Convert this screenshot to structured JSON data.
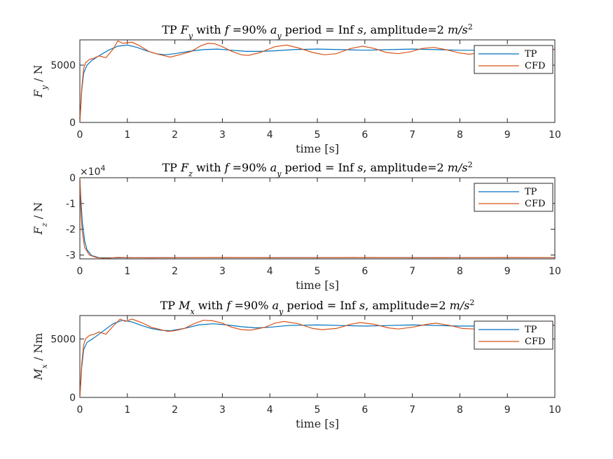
{
  "chart_data": [
    {
      "type": "line",
      "title_parts": [
        "TP ",
        "F",
        "y",
        " with ",
        "f",
        " =90% ",
        "a",
        "y",
        " period = Inf ",
        "s",
        ", amplitude=2 ",
        "m/s",
        "2"
      ],
      "xlabel": "time [s]",
      "ylabel_parts": [
        "F",
        "y",
        " / N"
      ],
      "xlim": [
        0,
        10
      ],
      "ylim": [
        0,
        7200
      ],
      "xticks": [
        0,
        1,
        2,
        3,
        4,
        5,
        6,
        7,
        8,
        9,
        10
      ],
      "yticks": [
        0,
        5000
      ],
      "ytick_labels": [
        "0",
        "5000"
      ],
      "legend": "top-right",
      "series": [
        {
          "name": "TP",
          "color": "#0072BD",
          "points": [
            [
              0,
              0
            ],
            [
              0.04,
              2800
            ],
            [
              0.08,
              4300
            ],
            [
              0.15,
              5000
            ],
            [
              0.25,
              5400
            ],
            [
              0.4,
              5800
            ],
            [
              0.6,
              6300
            ],
            [
              0.8,
              6650
            ],
            [
              1.0,
              6750
            ],
            [
              1.2,
              6550
            ],
            [
              1.4,
              6250
            ],
            [
              1.6,
              6000
            ],
            [
              1.8,
              5900
            ],
            [
              2.0,
              6000
            ],
            [
              2.3,
              6200
            ],
            [
              2.6,
              6350
            ],
            [
              2.9,
              6400
            ],
            [
              3.2,
              6300
            ],
            [
              3.5,
              6200
            ],
            [
              3.8,
              6200
            ],
            [
              4.1,
              6250
            ],
            [
              4.5,
              6350
            ],
            [
              5.0,
              6400
            ],
            [
              5.5,
              6350
            ],
            [
              6.0,
              6300
            ],
            [
              6.5,
              6350
            ],
            [
              7.0,
              6400
            ],
            [
              7.5,
              6350
            ],
            [
              8.0,
              6300
            ],
            [
              8.5,
              6300
            ],
            [
              9.0,
              6350
            ],
            [
              9.5,
              6350
            ],
            [
              10,
              6350
            ]
          ]
        },
        {
          "name": "CFD",
          "color": "#D95319",
          "points": [
            [
              0,
              0
            ],
            [
              0.04,
              3000
            ],
            [
              0.08,
              4700
            ],
            [
              0.12,
              5200
            ],
            [
              0.2,
              5500
            ],
            [
              0.3,
              5600
            ],
            [
              0.4,
              5800
            ],
            [
              0.55,
              5650
            ],
            [
              0.7,
              6400
            ],
            [
              0.8,
              7100
            ],
            [
              0.9,
              6900
            ],
            [
              1.0,
              6950
            ],
            [
              1.1,
              7000
            ],
            [
              1.25,
              6700
            ],
            [
              1.45,
              6200
            ],
            [
              1.6,
              6000
            ],
            [
              1.8,
              5800
            ],
            [
              1.9,
              5700
            ],
            [
              2.1,
              5900
            ],
            [
              2.35,
              6200
            ],
            [
              2.55,
              6700
            ],
            [
              2.7,
              6900
            ],
            [
              2.85,
              6850
            ],
            [
              3.0,
              6600
            ],
            [
              3.2,
              6200
            ],
            [
              3.4,
              5900
            ],
            [
              3.55,
              5850
            ],
            [
              3.8,
              6100
            ],
            [
              4.1,
              6600
            ],
            [
              4.35,
              6750
            ],
            [
              4.6,
              6500
            ],
            [
              4.9,
              6100
            ],
            [
              5.15,
              5900
            ],
            [
              5.4,
              6000
            ],
            [
              5.7,
              6450
            ],
            [
              5.95,
              6650
            ],
            [
              6.2,
              6450
            ],
            [
              6.45,
              6100
            ],
            [
              6.7,
              6000
            ],
            [
              6.95,
              6150
            ],
            [
              7.2,
              6450
            ],
            [
              7.45,
              6550
            ],
            [
              7.7,
              6350
            ],
            [
              8.0,
              6050
            ],
            [
              8.2,
              5950
            ],
            [
              8.45,
              6100
            ],
            [
              8.8,
              6450
            ],
            [
              9.05,
              6550
            ],
            [
              9.3,
              6350
            ],
            [
              9.55,
              6100
            ],
            [
              9.8,
              6200
            ],
            [
              10,
              6400
            ]
          ]
        }
      ]
    },
    {
      "type": "line",
      "title_parts": [
        "TP ",
        "F",
        "z",
        " with ",
        "f",
        " =90% ",
        "a",
        "y",
        " period = Inf ",
        "s",
        ", amplitude=2 ",
        "m/s",
        "2"
      ],
      "xlabel": "time [s]",
      "ylabel_parts": [
        "F",
        "z",
        " / N"
      ],
      "xlim": [
        0,
        10
      ],
      "ylim": [
        -31500,
        0
      ],
      "xticks": [
        0,
        1,
        2,
        3,
        4,
        5,
        6,
        7,
        8,
        9,
        10
      ],
      "yticks": [
        0,
        -10000,
        -20000,
        -30000
      ],
      "ytick_labels": [
        "0",
        "-1",
        "-2",
        "-3"
      ],
      "multiplier_base": "×10",
      "multiplier_exp": "4",
      "legend": "top-right",
      "series": [
        {
          "name": "TP",
          "color": "#0072BD",
          "points": [
            [
              0,
              0
            ],
            [
              0.02,
              -8000
            ],
            [
              0.05,
              -17000
            ],
            [
              0.1,
              -24500
            ],
            [
              0.15,
              -28000
            ],
            [
              0.25,
              -30200
            ],
            [
              0.4,
              -31000
            ],
            [
              0.6,
              -31100
            ],
            [
              1.0,
              -31050
            ],
            [
              2,
              -31000
            ],
            [
              3,
              -31000
            ],
            [
              4,
              -31000
            ],
            [
              5,
              -31000
            ],
            [
              6,
              -31000
            ],
            [
              7,
              -31000
            ],
            [
              8,
              -31000
            ],
            [
              9,
              -31000
            ],
            [
              10,
              -31000
            ]
          ]
        },
        {
          "name": "CFD",
          "color": "#D95319",
          "points": [
            [
              0,
              0
            ],
            [
              0.02,
              -12000
            ],
            [
              0.05,
              -21000
            ],
            [
              0.1,
              -27000
            ],
            [
              0.2,
              -30000
            ],
            [
              0.35,
              -31000
            ],
            [
              0.55,
              -31300
            ],
            [
              0.8,
              -30900
            ],
            [
              1.1,
              -31050
            ],
            [
              1.5,
              -31100
            ],
            [
              2,
              -31000
            ],
            [
              3,
              -30950
            ],
            [
              4,
              -31050
            ],
            [
              5,
              -31000
            ],
            [
              6,
              -30950
            ],
            [
              7,
              -31050
            ],
            [
              8,
              -31000
            ],
            [
              9,
              -30950
            ],
            [
              10,
              -31000
            ]
          ]
        }
      ]
    },
    {
      "type": "line",
      "title_parts": [
        "TP ",
        "M",
        "x",
        " with ",
        "f",
        " =90% ",
        "a",
        "y",
        " period = Inf ",
        "s",
        ", amplitude=2 ",
        "m/s",
        "2"
      ],
      "xlabel": "time [s]",
      "ylabel_parts": [
        "M",
        "x",
        " / Nm"
      ],
      "xlim": [
        0,
        10
      ],
      "ylim": [
        0,
        7000
      ],
      "xticks": [
        0,
        1,
        2,
        3,
        4,
        5,
        6,
        7,
        8,
        9,
        10
      ],
      "yticks": [
        0,
        5000
      ],
      "ytick_labels": [
        "0",
        "5000"
      ],
      "legend": "top-right",
      "series": [
        {
          "name": "TP",
          "color": "#0072BD",
          "points": [
            [
              0,
              0
            ],
            [
              0.04,
              2600
            ],
            [
              0.08,
              4100
            ],
            [
              0.15,
              4700
            ],
            [
              0.3,
              5100
            ],
            [
              0.5,
              5700
            ],
            [
              0.7,
              6300
            ],
            [
              0.9,
              6600
            ],
            [
              1.1,
              6450
            ],
            [
              1.3,
              6150
            ],
            [
              1.5,
              5900
            ],
            [
              1.7,
              5750
            ],
            [
              1.9,
              5700
            ],
            [
              2.2,
              5900
            ],
            [
              2.5,
              6200
            ],
            [
              2.8,
              6300
            ],
            [
              3.1,
              6200
            ],
            [
              3.4,
              6050
            ],
            [
              3.7,
              5950
            ],
            [
              4.0,
              6000
            ],
            [
              4.4,
              6150
            ],
            [
              5.0,
              6200
            ],
            [
              5.5,
              6150
            ],
            [
              6.0,
              6100
            ],
            [
              6.5,
              6150
            ],
            [
              7.0,
              6200
            ],
            [
              7.5,
              6150
            ],
            [
              8.0,
              6100
            ],
            [
              8.5,
              6100
            ],
            [
              9.0,
              6150
            ],
            [
              9.5,
              6150
            ],
            [
              10,
              6150
            ]
          ]
        },
        {
          "name": "CFD",
          "color": "#D95319",
          "points": [
            [
              0,
              0
            ],
            [
              0.04,
              2900
            ],
            [
              0.08,
              4500
            ],
            [
              0.12,
              5000
            ],
            [
              0.2,
              5300
            ],
            [
              0.3,
              5400
            ],
            [
              0.4,
              5600
            ],
            [
              0.55,
              5400
            ],
            [
              0.7,
              6100
            ],
            [
              0.85,
              6700
            ],
            [
              0.95,
              6500
            ],
            [
              1.1,
              6700
            ],
            [
              1.3,
              6400
            ],
            [
              1.5,
              6000
            ],
            [
              1.7,
              5800
            ],
            [
              1.85,
              5650
            ],
            [
              2.0,
              5700
            ],
            [
              2.2,
              5900
            ],
            [
              2.4,
              6300
            ],
            [
              2.6,
              6600
            ],
            [
              2.8,
              6550
            ],
            [
              3.0,
              6350
            ],
            [
              3.2,
              6000
            ],
            [
              3.4,
              5800
            ],
            [
              3.6,
              5750
            ],
            [
              3.9,
              6000
            ],
            [
              4.1,
              6350
            ],
            [
              4.3,
              6500
            ],
            [
              4.6,
              6300
            ],
            [
              4.9,
              5900
            ],
            [
              5.1,
              5800
            ],
            [
              5.4,
              5900
            ],
            [
              5.7,
              6250
            ],
            [
              5.9,
              6400
            ],
            [
              6.2,
              6250
            ],
            [
              6.5,
              5950
            ],
            [
              6.7,
              5850
            ],
            [
              7.0,
              6000
            ],
            [
              7.3,
              6250
            ],
            [
              7.5,
              6350
            ],
            [
              7.8,
              6150
            ],
            [
              8.05,
              5900
            ],
            [
              8.3,
              5850
            ],
            [
              8.6,
              6050
            ],
            [
              8.9,
              6300
            ],
            [
              9.1,
              6350
            ],
            [
              9.4,
              6150
            ],
            [
              9.65,
              6000
            ],
            [
              9.85,
              6100
            ],
            [
              10,
              6200
            ]
          ]
        }
      ]
    }
  ]
}
